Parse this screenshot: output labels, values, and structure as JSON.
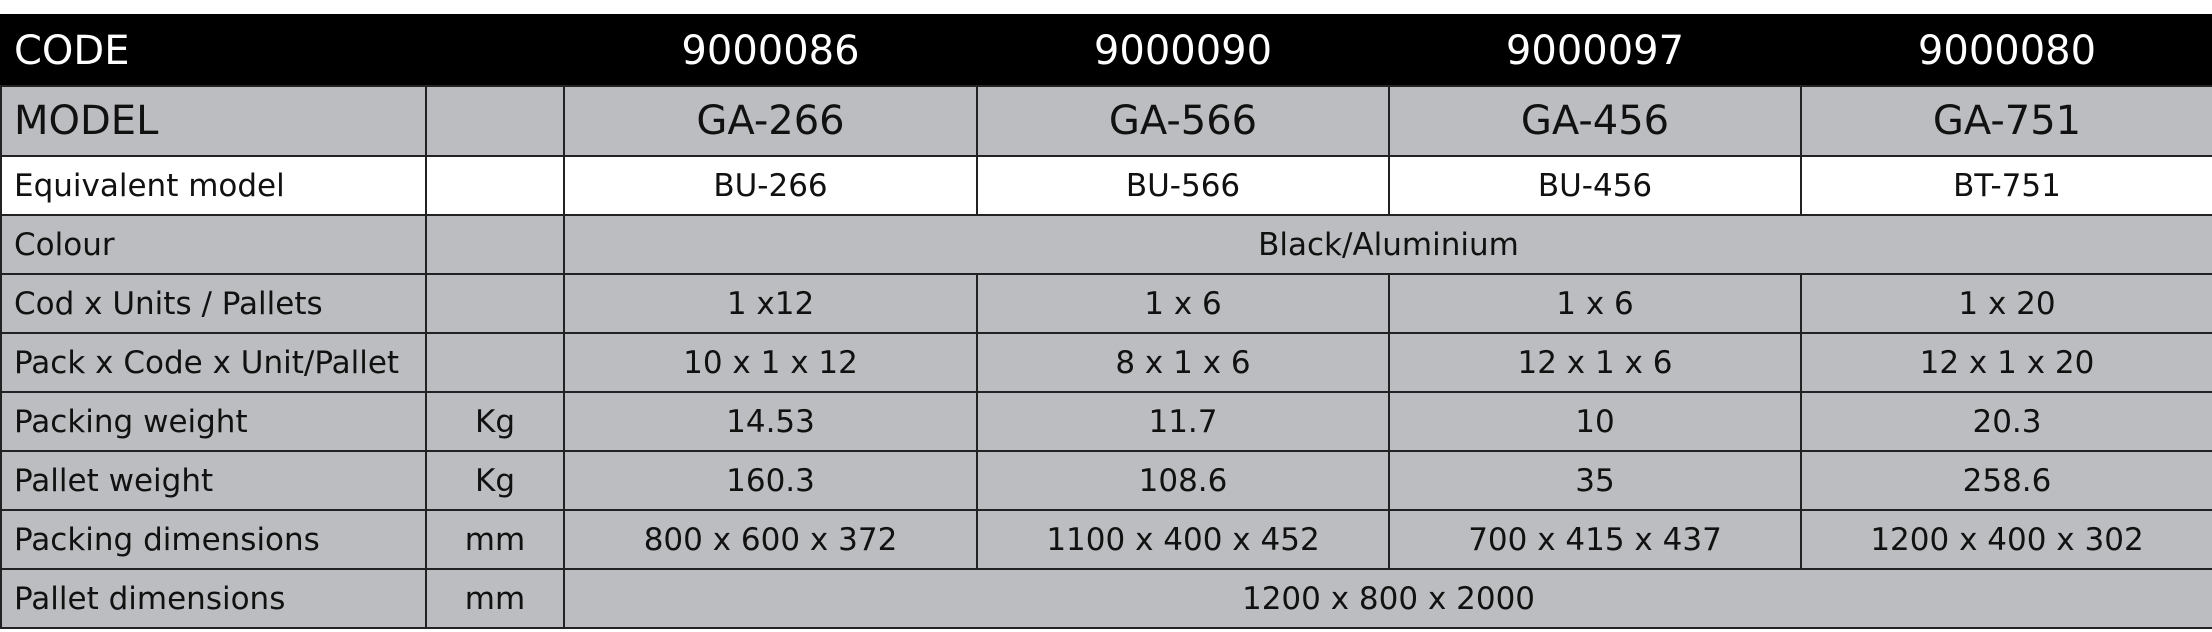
{
  "table": {
    "code_row": {
      "label": "CODE",
      "values": [
        "9000086",
        "9000090",
        "9000097",
        "9000080"
      ]
    },
    "model_row": {
      "label": "MODEL",
      "values": [
        "GA-266",
        "GA-566",
        "GA-456",
        "GA-751"
      ]
    },
    "rows": [
      {
        "label": "Equivalent model",
        "values": [
          "BU-266",
          "BU-566",
          "BU-456",
          "BT-751"
        ]
      },
      {
        "label": "Colour",
        "values": [
          "Black/Aluminium"
        ]
      },
      {
        "label": "Cod x Units / Pallets",
        "values": [
          "1 x12",
          "1 x 6",
          "1 x 6",
          "1 x 20"
        ]
      },
      {
        "label": "Pack x Code x Unit/Pallet",
        "values": [
          "10 x 1 x 12",
          "8 x 1 x 6",
          "12 x 1 x 6",
          "12 x 1 x 20"
        ]
      },
      {
        "label": "Packing weight",
        "unit": "Kg",
        "values": [
          "14.53",
          "11.7",
          "10",
          "20.3"
        ]
      },
      {
        "label": "Pallet weight",
        "unit": "Kg",
        "values": [
          "160.3",
          "108.6",
          "35",
          "258.6"
        ]
      },
      {
        "label": "Packing dimensions",
        "unit": "mm",
        "values": [
          "800 x 600 x 372",
          "1100 x 400 x 452",
          "700 x 415 x 437",
          "1200 x 400 x 302"
        ]
      },
      {
        "label": "Pallet dimensions",
        "unit": "mm",
        "values": [
          "1200 x 800 x 2000"
        ]
      }
    ]
  }
}
